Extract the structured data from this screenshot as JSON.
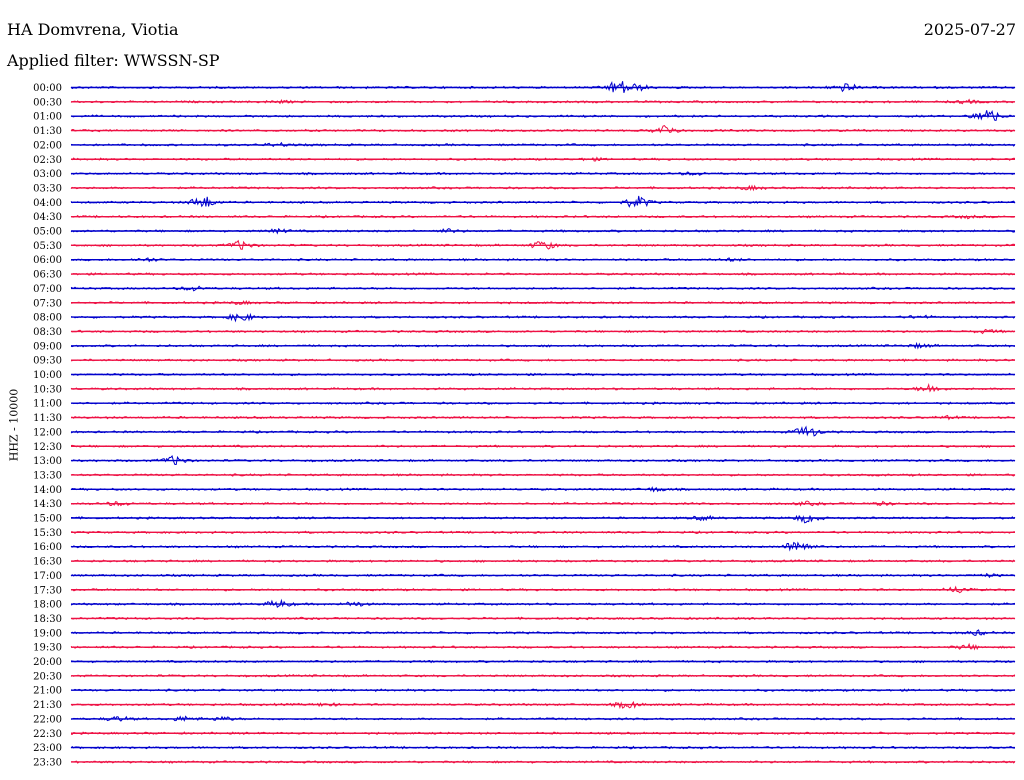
{
  "header": {
    "station": "HA Domvrena, Viotia",
    "date": "2025-07-27",
    "filter": "Applied filter: WWSSN-SP"
  },
  "chart_data": {
    "type": "line",
    "title": "HA Domvrena, Viotia",
    "subtitle": "Applied filter: WWSSN-SP",
    "date": "2025-07-27",
    "ylabel": "HHZ - 10000",
    "xlabel": "",
    "grid": false,
    "colors": {
      "even_row": "#0000cc",
      "odd_row": "#ee1144"
    },
    "x_range_minutes": [
      0,
      30
    ],
    "rows": [
      {
        "label": "00:00",
        "events": [
          [
            0.58,
            1.6
          ],
          [
            0.6,
            0.6
          ],
          [
            0.82,
            0.9
          ]
        ]
      },
      {
        "label": "00:30",
        "events": [
          [
            0.22,
            0.25
          ],
          [
            0.95,
            0.3
          ]
        ]
      },
      {
        "label": "01:00",
        "events": [
          [
            0.97,
            1.8
          ]
        ]
      },
      {
        "label": "01:30",
        "events": [
          [
            0.63,
            1.2
          ]
        ]
      },
      {
        "label": "02:00",
        "events": [
          [
            0.22,
            0.4
          ]
        ]
      },
      {
        "label": "02:30",
        "events": [
          [
            0.55,
            0.25
          ]
        ]
      },
      {
        "label": "03:00",
        "events": [
          [
            0.66,
            0.3
          ]
        ]
      },
      {
        "label": "03:30",
        "events": [
          [
            0.72,
            0.35
          ]
        ]
      },
      {
        "label": "04:00",
        "events": [
          [
            0.14,
            1.4
          ],
          [
            0.6,
            1.4
          ]
        ]
      },
      {
        "label": "04:30",
        "events": [
          [
            0.95,
            0.25
          ]
        ]
      },
      {
        "label": "05:00",
        "events": [
          [
            0.22,
            0.35
          ],
          [
            0.4,
            0.35
          ]
        ]
      },
      {
        "label": "05:30",
        "events": [
          [
            0.18,
            1.0
          ],
          [
            0.5,
            1.0
          ]
        ]
      },
      {
        "label": "06:00",
        "events": [
          [
            0.08,
            0.35
          ],
          [
            0.7,
            0.25
          ]
        ]
      },
      {
        "label": "06:30",
        "events": []
      },
      {
        "label": "07:00",
        "events": [
          [
            0.13,
            0.5
          ]
        ]
      },
      {
        "label": "07:30",
        "events": [
          [
            0.18,
            0.25
          ]
        ]
      },
      {
        "label": "08:00",
        "events": [
          [
            0.18,
            0.9
          ],
          [
            0.9,
            0.3
          ]
        ]
      },
      {
        "label": "08:30",
        "events": [
          [
            0.97,
            0.35
          ]
        ]
      },
      {
        "label": "09:00",
        "events": [
          [
            0.9,
            0.4
          ]
        ]
      },
      {
        "label": "09:30",
        "events": []
      },
      {
        "label": "10:00",
        "events": []
      },
      {
        "label": "10:30",
        "events": [
          [
            0.91,
            0.9
          ]
        ]
      },
      {
        "label": "11:00",
        "events": []
      },
      {
        "label": "11:30",
        "events": [
          [
            0.93,
            0.25
          ]
        ]
      },
      {
        "label": "12:00",
        "events": [
          [
            0.78,
            1.3
          ]
        ]
      },
      {
        "label": "12:30",
        "events": []
      },
      {
        "label": "13:00",
        "events": [
          [
            0.11,
            1.0
          ]
        ]
      },
      {
        "label": "13:30",
        "events": []
      },
      {
        "label": "14:00",
        "events": [
          [
            0.62,
            0.4
          ]
        ]
      },
      {
        "label": "14:30",
        "events": [
          [
            0.05,
            0.4
          ],
          [
            0.78,
            0.35
          ],
          [
            0.86,
            0.3
          ]
        ]
      },
      {
        "label": "15:00",
        "events": [
          [
            0.67,
            0.4
          ],
          [
            0.78,
            1.0
          ]
        ]
      },
      {
        "label": "15:30",
        "events": []
      },
      {
        "label": "16:00",
        "events": [
          [
            0.77,
            1.6
          ]
        ]
      },
      {
        "label": "16:30",
        "events": []
      },
      {
        "label": "17:00",
        "events": [
          [
            0.97,
            0.3
          ]
        ]
      },
      {
        "label": "17:30",
        "events": [
          [
            0.94,
            0.7
          ]
        ]
      },
      {
        "label": "18:00",
        "events": [
          [
            0.22,
            0.8
          ],
          [
            0.3,
            0.5
          ]
        ]
      },
      {
        "label": "18:30",
        "events": []
      },
      {
        "label": "19:00",
        "events": [
          [
            0.96,
            0.5
          ]
        ]
      },
      {
        "label": "19:30",
        "events": [
          [
            0.95,
            0.5
          ]
        ]
      },
      {
        "label": "20:00",
        "events": []
      },
      {
        "label": "20:30",
        "events": []
      },
      {
        "label": "21:00",
        "events": []
      },
      {
        "label": "21:30",
        "events": [
          [
            0.27,
            0.35
          ],
          [
            0.59,
            0.8
          ]
        ]
      },
      {
        "label": "22:00",
        "events": [
          [
            0.05,
            0.5
          ],
          [
            0.12,
            0.5
          ],
          [
            0.16,
            0.4
          ]
        ]
      },
      {
        "label": "22:30",
        "events": []
      },
      {
        "label": "23:00",
        "events": []
      },
      {
        "label": "23:30",
        "events": []
      }
    ]
  }
}
